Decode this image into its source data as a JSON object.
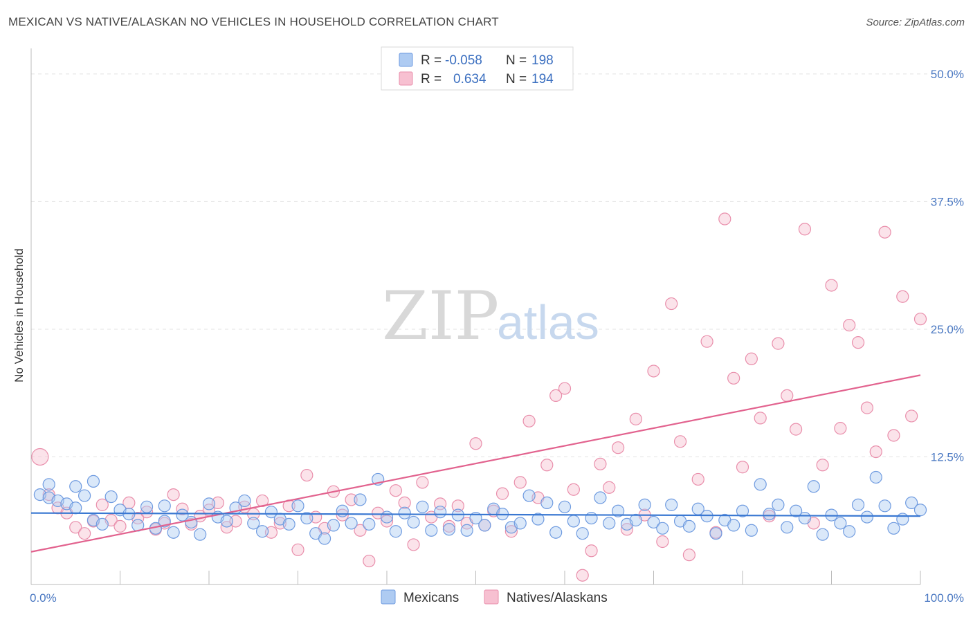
{
  "title": "MEXICAN VS NATIVE/ALASKAN NO VEHICLES IN HOUSEHOLD CORRELATION CHART",
  "source": "Source: ZipAtlas.com",
  "watermark": {
    "zip": "ZIP",
    "atlas": "atlas"
  },
  "colors": {
    "blue_fill": "#aecbf2",
    "blue_stroke": "#6f9be0",
    "blue_line": "#3a78d2",
    "pink_fill": "#f7c0d1",
    "pink_stroke": "#e98eab",
    "pink_line": "#e2628e",
    "axis_text": "#4a78c2",
    "grid": "#e3e3e3"
  },
  "legend": {
    "rows": [
      {
        "r_label": "R =",
        "r_value": "-0.058",
        "n_label": "N =",
        "n_value": "198"
      },
      {
        "r_label": "R =",
        "r_value": "0.634",
        "n_label": "N =",
        "n_value": "194"
      }
    ]
  },
  "chart_data": {
    "type": "scatter",
    "title": "MEXICAN VS NATIVE/ALASKAN NO VEHICLES IN HOUSEHOLD CORRELATION CHART",
    "xlabel": "",
    "ylabel": "No Vehicles in Household",
    "xlim": [
      0,
      100
    ],
    "ylim": [
      0,
      52.5
    ],
    "x_tick_labels": [
      "0.0%",
      "100.0%"
    ],
    "y_ticks": [
      12.5,
      25.0,
      37.5,
      50.0
    ],
    "y_tick_labels": [
      "12.5%",
      "25.0%",
      "37.5%",
      "50.0%"
    ],
    "grid": true,
    "legend_placement": "bottom",
    "series": [
      {
        "name": "Mexicans",
        "r": -0.058,
        "n": 198,
        "trend": [
          [
            0,
            7.0
          ],
          [
            100,
            6.7
          ]
        ],
        "points": [
          [
            1,
            8.8
          ],
          [
            2,
            9.8
          ],
          [
            2,
            8.5
          ],
          [
            3,
            8.2
          ],
          [
            4,
            7.9
          ],
          [
            5,
            9.6
          ],
          [
            5,
            7.5
          ],
          [
            6,
            8.7
          ],
          [
            7,
            10.1
          ],
          [
            7,
            6.3
          ],
          [
            8,
            5.9
          ],
          [
            9,
            8.6
          ],
          [
            10,
            7.3
          ],
          [
            11,
            6.9
          ],
          [
            12,
            5.8
          ],
          [
            13,
            7.6
          ],
          [
            14,
            5.5
          ],
          [
            15,
            6.2
          ],
          [
            15,
            7.7
          ],
          [
            16,
            5.1
          ],
          [
            17,
            6.8
          ],
          [
            18,
            6.1
          ],
          [
            19,
            4.9
          ],
          [
            20,
            7.9
          ],
          [
            21,
            6.6
          ],
          [
            22,
            6.2
          ],
          [
            23,
            7.5
          ],
          [
            24,
            8.2
          ],
          [
            25,
            6.0
          ],
          [
            26,
            5.2
          ],
          [
            27,
            7.1
          ],
          [
            28,
            6.4
          ],
          [
            29,
            5.9
          ],
          [
            30,
            7.7
          ],
          [
            31,
            6.5
          ],
          [
            32,
            5.0
          ],
          [
            33,
            4.5
          ],
          [
            34,
            5.8
          ],
          [
            35,
            7.2
          ],
          [
            36,
            6.0
          ],
          [
            37,
            8.3
          ],
          [
            38,
            5.9
          ],
          [
            39,
            10.3
          ],
          [
            40,
            6.6
          ],
          [
            41,
            5.2
          ],
          [
            42,
            7.0
          ],
          [
            43,
            6.1
          ],
          [
            44,
            7.6
          ],
          [
            45,
            5.3
          ],
          [
            46,
            7.1
          ],
          [
            47,
            5.4
          ],
          [
            48,
            6.8
          ],
          [
            49,
            5.3
          ],
          [
            50,
            6.5
          ],
          [
            51,
            5.8
          ],
          [
            52,
            7.4
          ],
          [
            53,
            6.9
          ],
          [
            54,
            5.6
          ],
          [
            55,
            6.0
          ],
          [
            56,
            8.7
          ],
          [
            57,
            6.4
          ],
          [
            58,
            8.0
          ],
          [
            59,
            5.1
          ],
          [
            60,
            7.6
          ],
          [
            61,
            6.2
          ],
          [
            62,
            5.0
          ],
          [
            63,
            6.5
          ],
          [
            64,
            8.5
          ],
          [
            65,
            6.0
          ],
          [
            66,
            7.2
          ],
          [
            67,
            5.9
          ],
          [
            68,
            6.3
          ],
          [
            69,
            7.8
          ],
          [
            70,
            6.1
          ],
          [
            71,
            5.5
          ],
          [
            72,
            7.8
          ],
          [
            73,
            6.2
          ],
          [
            74,
            5.7
          ],
          [
            75,
            7.4
          ],
          [
            76,
            6.7
          ],
          [
            77,
            5.0
          ],
          [
            78,
            6.3
          ],
          [
            79,
            5.8
          ],
          [
            80,
            7.2
          ],
          [
            81,
            5.3
          ],
          [
            82,
            9.8
          ],
          [
            83,
            6.9
          ],
          [
            84,
            7.8
          ],
          [
            85,
            5.6
          ],
          [
            86,
            7.2
          ],
          [
            87,
            6.5
          ],
          [
            88,
            9.6
          ],
          [
            89,
            4.9
          ],
          [
            90,
            6.8
          ],
          [
            91,
            6.0
          ],
          [
            92,
            5.2
          ],
          [
            93,
            7.8
          ],
          [
            94,
            6.6
          ],
          [
            95,
            10.5
          ],
          [
            96,
            7.7
          ],
          [
            97,
            5.5
          ],
          [
            98,
            6.4
          ],
          [
            99,
            8.0
          ],
          [
            100,
            7.3
          ]
        ]
      },
      {
        "name": "Natives/Alaskans",
        "r": 0.634,
        "n": 194,
        "trend": [
          [
            0,
            3.2
          ],
          [
            100,
            20.5
          ]
        ],
        "points": [
          [
            1,
            12.5
          ],
          [
            2,
            8.8
          ],
          [
            3,
            7.5
          ],
          [
            4,
            7.0
          ],
          [
            5,
            5.6
          ],
          [
            6,
            5.0
          ],
          [
            7,
            6.2
          ],
          [
            8,
            7.8
          ],
          [
            9,
            6.3
          ],
          [
            10,
            5.7
          ],
          [
            11,
            8.0
          ],
          [
            12,
            6.5
          ],
          [
            13,
            7.1
          ],
          [
            14,
            5.4
          ],
          [
            15,
            6.0
          ],
          [
            16,
            8.8
          ],
          [
            17,
            7.4
          ],
          [
            18,
            5.9
          ],
          [
            19,
            6.7
          ],
          [
            20,
            7.3
          ],
          [
            21,
            8.0
          ],
          [
            22,
            5.6
          ],
          [
            23,
            6.2
          ],
          [
            24,
            7.6
          ],
          [
            25,
            6.9
          ],
          [
            26,
            8.2
          ],
          [
            27,
            5.1
          ],
          [
            28,
            6.0
          ],
          [
            29,
            7.7
          ],
          [
            30,
            3.4
          ],
          [
            31,
            10.7
          ],
          [
            32,
            6.6
          ],
          [
            33,
            5.5
          ],
          [
            34,
            9.1
          ],
          [
            35,
            6.8
          ],
          [
            36,
            8.3
          ],
          [
            37,
            5.3
          ],
          [
            38,
            2.3
          ],
          [
            39,
            7.0
          ],
          [
            40,
            6.2
          ],
          [
            41,
            9.2
          ],
          [
            42,
            8.0
          ],
          [
            43,
            3.9
          ],
          [
            44,
            10.0
          ],
          [
            45,
            6.6
          ],
          [
            46,
            7.9
          ],
          [
            47,
            5.7
          ],
          [
            48,
            7.7
          ],
          [
            49,
            6.0
          ],
          [
            50,
            13.8
          ],
          [
            51,
            5.8
          ],
          [
            52,
            7.2
          ],
          [
            53,
            8.9
          ],
          [
            54,
            5.2
          ],
          [
            55,
            10.0
          ],
          [
            56,
            16.0
          ],
          [
            57,
            8.5
          ],
          [
            58,
            11.7
          ],
          [
            59,
            18.5
          ],
          [
            60,
            19.2
          ],
          [
            61,
            9.3
          ],
          [
            62,
            0.9
          ],
          [
            63,
            3.3
          ],
          [
            64,
            11.8
          ],
          [
            65,
            9.5
          ],
          [
            66,
            13.4
          ],
          [
            67,
            5.4
          ],
          [
            68,
            16.2
          ],
          [
            69,
            6.8
          ],
          [
            70,
            20.9
          ],
          [
            71,
            4.2
          ],
          [
            72,
            27.5
          ],
          [
            73,
            14.0
          ],
          [
            74,
            2.9
          ],
          [
            75,
            10.3
          ],
          [
            76,
            23.8
          ],
          [
            77,
            5.1
          ],
          [
            78,
            35.8
          ],
          [
            79,
            20.2
          ],
          [
            80,
            11.5
          ],
          [
            81,
            22.1
          ],
          [
            82,
            16.3
          ],
          [
            83,
            6.7
          ],
          [
            84,
            23.6
          ],
          [
            85,
            18.5
          ],
          [
            86,
            15.2
          ],
          [
            87,
            34.8
          ],
          [
            88,
            6.0
          ],
          [
            89,
            11.7
          ],
          [
            90,
            29.3
          ],
          [
            91,
            15.3
          ],
          [
            92,
            25.4
          ],
          [
            93,
            23.7
          ],
          [
            94,
            17.3
          ],
          [
            95,
            13.0
          ],
          [
            96,
            34.5
          ],
          [
            97,
            14.6
          ],
          [
            98,
            28.2
          ],
          [
            99,
            16.5
          ],
          [
            100,
            26.0
          ]
        ]
      }
    ]
  }
}
